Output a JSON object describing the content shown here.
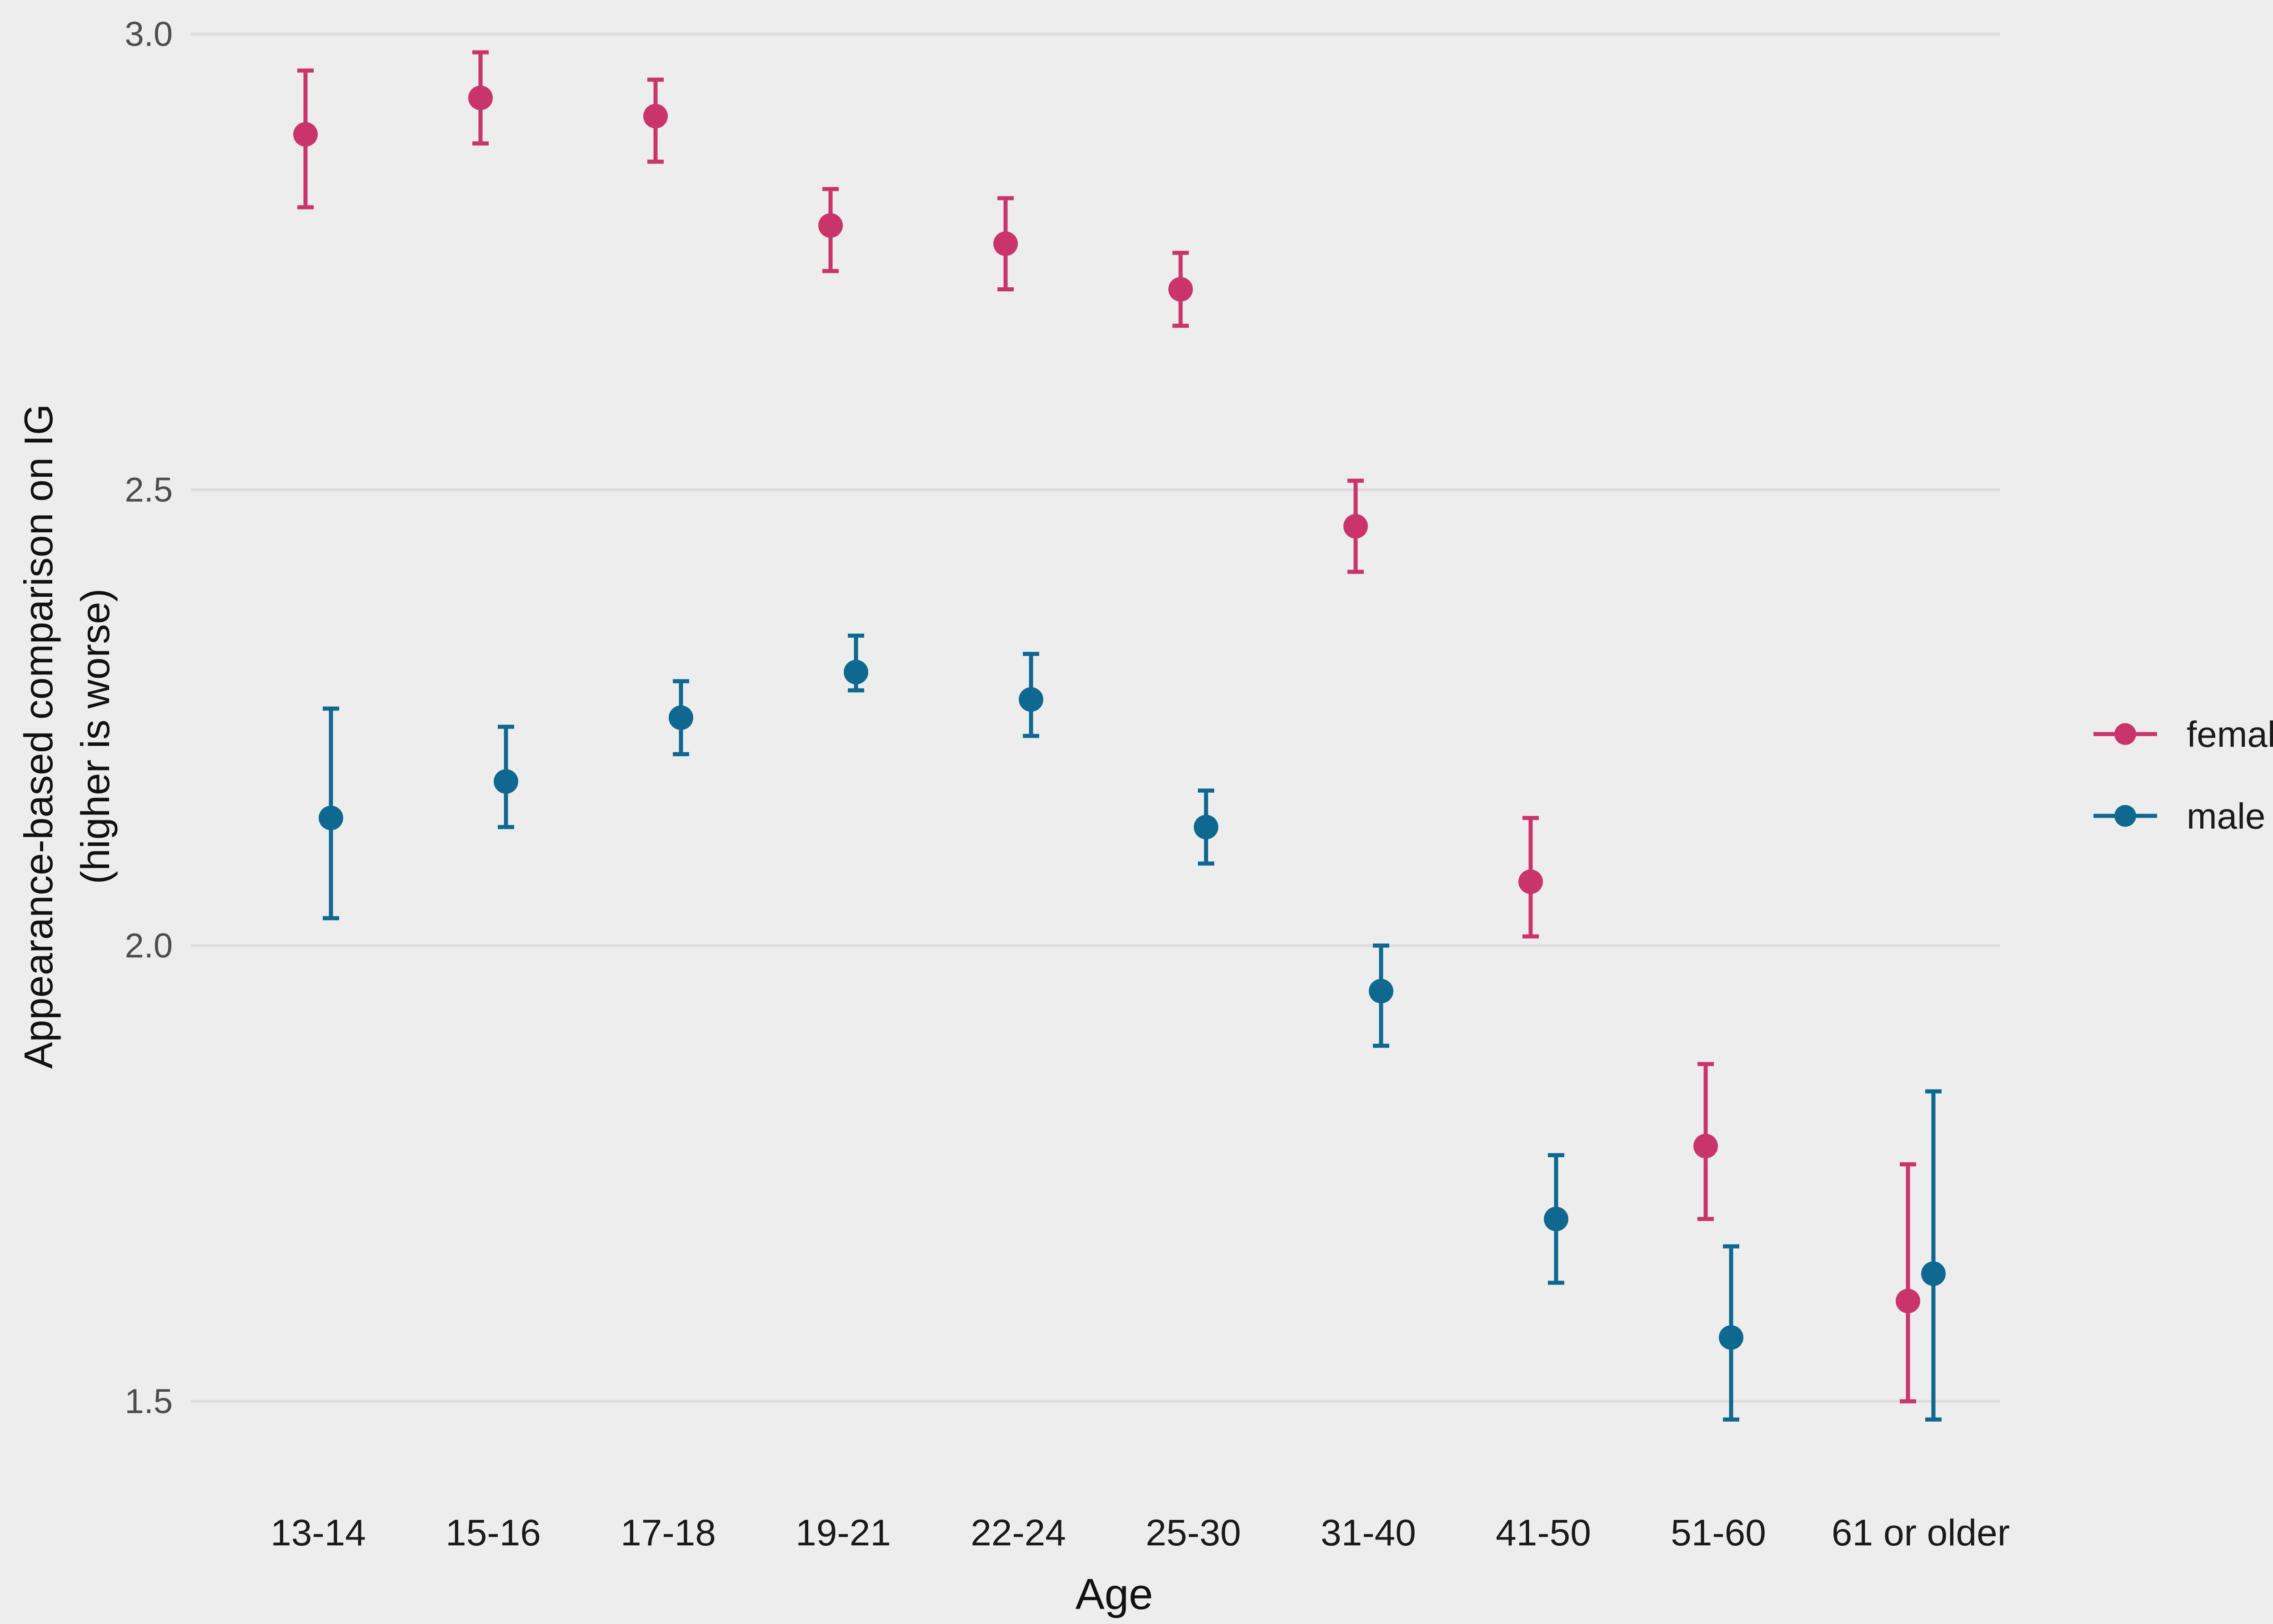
{
  "chart_data": {
    "type": "scatter",
    "title": "",
    "xlabel": "Age",
    "ylabel_line1": "Appearance-based comparison on IG",
    "ylabel_line2": "(higher is worse)",
    "categories": [
      "13-14",
      "15-16",
      "17-18",
      "19-21",
      "22-24",
      "25-30",
      "31-40",
      "41-50",
      "51-60",
      "61 or older"
    ],
    "ylim": [
      1.42,
      3.02
    ],
    "yticks": [
      {
        "value": 1.5,
        "label": "1.5"
      },
      {
        "value": 2.0,
        "label": "2.0"
      },
      {
        "value": 2.5,
        "label": "2.5"
      },
      {
        "value": 3.0,
        "label": "3.0"
      }
    ],
    "grid": true,
    "legend_position": "right",
    "error_bars": true,
    "series": [
      {
        "name": "female",
        "color": "#c9356b",
        "values": [
          2.89,
          2.93,
          2.91,
          2.79,
          2.77,
          2.72,
          2.46,
          2.07,
          1.78,
          1.61
        ],
        "lower": [
          2.81,
          2.88,
          2.86,
          2.74,
          2.72,
          2.68,
          2.41,
          2.01,
          1.7,
          1.5
        ],
        "upper": [
          2.96,
          2.98,
          2.95,
          2.83,
          2.82,
          2.76,
          2.51,
          2.14,
          1.87,
          1.76
        ]
      },
      {
        "name": "male",
        "color": "#0e6890",
        "values": [
          2.14,
          2.18,
          2.25,
          2.3,
          2.27,
          2.13,
          1.95,
          1.7,
          1.57,
          1.64
        ],
        "lower": [
          2.03,
          2.13,
          2.21,
          2.28,
          2.23,
          2.09,
          1.89,
          1.63,
          1.48,
          1.48
        ],
        "upper": [
          2.26,
          2.24,
          2.29,
          2.34,
          2.32,
          2.17,
          2.0,
          1.77,
          1.67,
          1.84
        ]
      }
    ]
  }
}
